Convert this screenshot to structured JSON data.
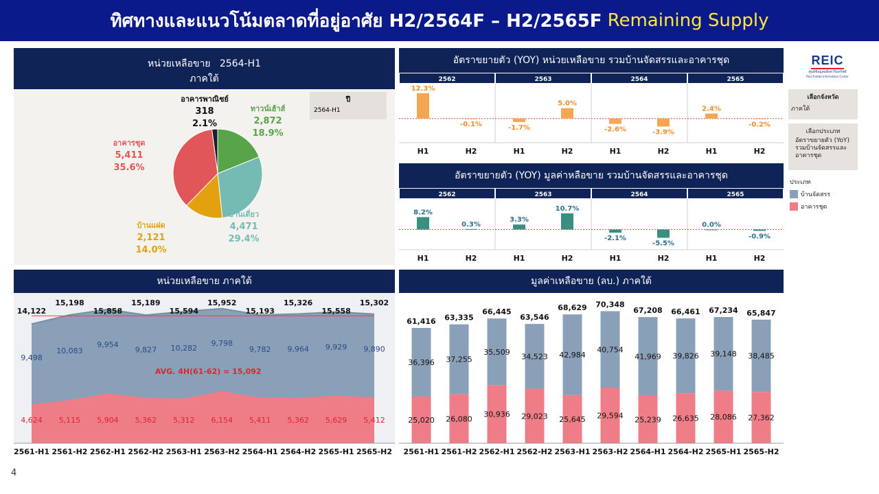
{
  "title": {
    "main": "ทิศทางและแนวโน้มตลาดที่อยู่อาศัย H2/2564F – H2/2565F",
    "highlight": "Remaining Supply"
  },
  "page_number": "4",
  "pie_panel": {
    "title_line1": "หน่วยเหลือขาย   2564-H1",
    "title_line2": "ภาคใต้",
    "filter_header": "ปี",
    "filter_value": "2564-H1"
  },
  "yoy_units_panel": {
    "title": "อัตราขยายตัว (YOY) หน่วยเหลือขาย รวมบ้านจัดสรรและอาคารชุด"
  },
  "yoy_value_panel": {
    "title": "อัตราขยายตัว (YOY) มูลค่าหลือขาย รวมบ้านจัดสรรและอาคารชุด"
  },
  "area_panel": {
    "title": "หน่วยเหลือขาย ภาคใต้",
    "avg_label": "AVG. 4H(61-62) = 15,092"
  },
  "bar_panel": {
    "title": "มูลค่าเหลือขาย (ลบ.) ภาคใต้"
  },
  "sidebar": {
    "logo_text": "REIC",
    "logo_sub": "ศูนย์ข้อมูลอสังหาริมทรัพย์",
    "logo_sub2": "Real Estate Information Center",
    "province_header": "เลือกจังหวัด",
    "province_value": "ภาคใต้",
    "type_header": "เลือกประเภท",
    "type_value": "อัตราขยายตัว (YoY) รวมบ้านจัดสรรและอาคารชุด",
    "legend_header": "ประเภท",
    "legend_items": [
      {
        "label": "บ้านจัดสรร",
        "color": "#8aa0b8"
      },
      {
        "label": "อาคารชุด",
        "color": "#ee7d87"
      }
    ]
  },
  "chart_data": [
    {
      "type": "pie",
      "title": "หน่วยเหลือขาย   2564-H1",
      "slices": [
        {
          "label": "อาคารพาณิชย์",
          "value": 318,
          "value_text": "318",
          "pct": "2.1%",
          "color": "#1b2130"
        },
        {
          "label": "ทาวน์เฮ้าส์",
          "value": 2872,
          "value_text": "2,872",
          "pct": "18.9%",
          "color": "#57a449"
        },
        {
          "label": "บ้านเดี่ยว",
          "value": 4471,
          "value_text": "4,471",
          "pct": "29.4%",
          "color": "#76bab4"
        },
        {
          "label": "บ้านแฝด",
          "value": 2121,
          "value_text": "2,121",
          "pct": "14.0%",
          "color": "#e3a10f"
        },
        {
          "label": "อาคารชุด",
          "value": 5411,
          "value_text": "5,411",
          "pct": "35.6%",
          "color": "#e15759"
        }
      ]
    },
    {
      "type": "bar",
      "title": "อัตราขยายตัว (YOY) หน่วยเหลือขาย รวมบ้านจัดสรรและอาคารชุด",
      "years": [
        "2562",
        "2563",
        "2564",
        "2565"
      ],
      "halves": [
        "H1",
        "H2"
      ],
      "values": [
        12.3,
        -0.1,
        -1.7,
        5.0,
        -2.6,
        -3.9,
        2.4,
        -0.2
      ],
      "labels": [
        "12.3%",
        "-0.1%",
        "-1.7%",
        "5.0%",
        "-2.6%",
        "-3.9%",
        "2.4%",
        "-0.2%"
      ],
      "color": "#f5a653"
    },
    {
      "type": "bar",
      "title": "อัตราขยายตัว (YOY) มูลค่าหลือขาย รวมบ้านจัดสรรและอาคารชุด",
      "years": [
        "2562",
        "2563",
        "2564",
        "2565"
      ],
      "halves": [
        "H1",
        "H2"
      ],
      "values": [
        8.2,
        0.3,
        3.3,
        10.7,
        -2.1,
        -5.5,
        0.0,
        -0.9
      ],
      "labels": [
        "8.2%",
        "0.3%",
        "3.3%",
        "10.7%",
        "-2.1%",
        "-5.5%",
        "0.0%",
        "-0.9%"
      ],
      "color": "#3a8f7f"
    },
    {
      "type": "area",
      "title": "หน่วยเหลือขาย ภาคใต้",
      "categories": [
        "2561-H1",
        "2561-H2",
        "2562-H1",
        "2562-H2",
        "2563-H1",
        "2563-H2",
        "2564-H1",
        "2564-H2",
        "2565-H1",
        "2565-H2"
      ],
      "series": [
        {
          "name": "บ้านจัดสรร",
          "values": [
            9498,
            10083,
            9954,
            9827,
            10282,
            9798,
            9782,
            9964,
            9929,
            9890
          ],
          "labels": [
            "9,498",
            "10,083",
            "9,954",
            "9,827",
            "10,282",
            "9,798",
            "9,782",
            "9,964",
            "9,929",
            "9,890"
          ],
          "color": "#8aa0b8"
        },
        {
          "name": "อาคารชุด",
          "values": [
            4624,
            5115,
            5904,
            5362,
            5312,
            6154,
            5411,
            5362,
            5629,
            5412
          ],
          "labels": [
            "4,624",
            "5,115",
            "5,904",
            "5,362",
            "5,312",
            "6,154",
            "5,411",
            "5,362",
            "5,629",
            "5,412"
          ],
          "color": "#ee7d87"
        }
      ],
      "totals": [
        14122,
        15198,
        15858,
        15189,
        15594,
        15952,
        15193,
        15326,
        15558,
        15302
      ],
      "total_labels": [
        "14,122",
        "15,198",
        "15,858",
        "15,189",
        "15,594",
        "15,952",
        "15,193",
        "15,326",
        "15,558",
        "15,302"
      ],
      "avg_line": 15092,
      "ylim": [
        0,
        16500
      ]
    },
    {
      "type": "bar",
      "title": "มูลค่าเหลือขาย (ลบ.) ภาคใต้",
      "stacked": true,
      "categories": [
        "2561-H1",
        "2561-H2",
        "2562-H1",
        "2562-H2",
        "2563-H1",
        "2563-H2",
        "2564-H1",
        "2564-H2",
        "2565-H1",
        "2565-H2"
      ],
      "series": [
        {
          "name": "บ้านจัดสรร",
          "values": [
            36396,
            37255,
            35509,
            34523,
            42984,
            40754,
            41969,
            39826,
            39148,
            38485
          ],
          "labels": [
            "36,396",
            "37,255",
            "35,509",
            "34,523",
            "42,984",
            "40,754",
            "41,969",
            "39,826",
            "39,148",
            "38,485"
          ],
          "color": "#8aa0b8"
        },
        {
          "name": "อาคารชุด",
          "values": [
            25020,
            26080,
            30936,
            29023,
            25645,
            29594,
            25239,
            26635,
            28086,
            27362
          ],
          "labels": [
            "25,020",
            "26,080",
            "30,936",
            "29,023",
            "25,645",
            "29,594",
            "25,239",
            "26,635",
            "28,086",
            "27,362"
          ],
          "color": "#ee7d87"
        }
      ],
      "totals": [
        61416,
        63335,
        66445,
        63546,
        68629,
        70348,
        67208,
        66461,
        67234,
        65847
      ],
      "total_labels": [
        "61,416",
        "63,335",
        "66,445",
        "63,546",
        "68,629",
        "70,348",
        "67,208",
        "66,461",
        "67,234",
        "65,847"
      ],
      "ylim": [
        0,
        72000
      ]
    }
  ]
}
